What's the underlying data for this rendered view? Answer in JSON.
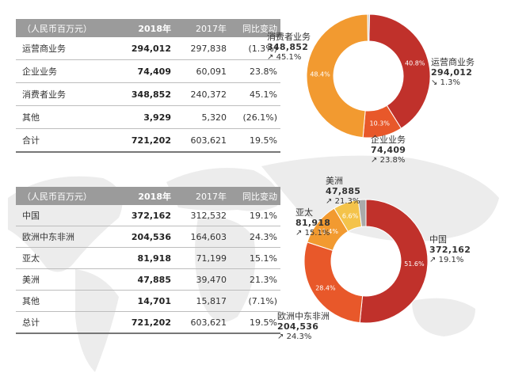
{
  "table_business": {
    "header": [
      "（人民币百万元）",
      "2018年",
      "2017年",
      "同比变动"
    ],
    "rows": [
      {
        "name": "运营商业务",
        "y2018": "294,012",
        "y2017": "297,838",
        "change": "(1.3%)"
      },
      {
        "name": "企业业务",
        "y2018": "74,409",
        "y2017": "60,091",
        "change": "23.8%"
      },
      {
        "name": "消费者业务",
        "y2018": "348,852",
        "y2017": "240,372",
        "change": "45.1%"
      },
      {
        "name": "其他",
        "y2018": "3,929",
        "y2017": "5,320",
        "change": "(26.1%)"
      },
      {
        "name": "合计",
        "y2018": "721,202",
        "y2017": "603,621",
        "change": "19.5%"
      }
    ]
  },
  "table_region": {
    "header": [
      "（人民币百万元）",
      "2018年",
      "2017年",
      "同比变动"
    ],
    "rows": [
      {
        "name": "中国",
        "y2018": "372,162",
        "y2017": "312,532",
        "change": "19.1%"
      },
      {
        "name": "欧洲中东非洲",
        "y2018": "204,536",
        "y2017": "164,603",
        "change": "24.3%"
      },
      {
        "name": "亚太",
        "y2018": "81,918",
        "y2017": "71,199",
        "change": "15.1%"
      },
      {
        "name": "美洲",
        "y2018": "47,885",
        "y2017": "39,470",
        "change": "21.3%"
      },
      {
        "name": "其他",
        "y2018": "14,701",
        "y2017": "15,817",
        "change": "(7.1%)"
      },
      {
        "name": "总计",
        "y2018": "721,202",
        "y2017": "603,621",
        "change": "19.5%"
      }
    ]
  },
  "chart_data": [
    {
      "type": "pie",
      "categories": [
        "运营商业务",
        "企业业务",
        "消费者业务",
        "其他"
      ],
      "values": [
        40.8,
        10.3,
        48.4,
        0.5
      ],
      "slice_labels": [
        "40.8%",
        "10.3%",
        "48.4%",
        ""
      ],
      "colors": [
        "#c0312b",
        "#e8582a",
        "#f29a30",
        "#cccccc"
      ],
      "annotations": [
        {
          "name": "运营商业务",
          "value": "294,012",
          "growth": "1.3%",
          "arrow": "↘"
        },
        {
          "name": "企业业务",
          "value": "74,409",
          "growth": "23.8%",
          "arrow": "↗"
        },
        {
          "name": "消费者业务",
          "value": "348,852",
          "growth": "45.1%",
          "arrow": "↗"
        }
      ]
    },
    {
      "type": "pie",
      "categories": [
        "中国",
        "欧洲中东非洲",
        "亚太",
        "美洲",
        "其他"
      ],
      "values": [
        51.6,
        28.4,
        11.4,
        6.6,
        2.0
      ],
      "slice_labels": [
        "51.6%",
        "28.4%",
        "11.4%",
        "6.6%",
        ""
      ],
      "colors": [
        "#c0312b",
        "#e8582a",
        "#f29a30",
        "#f4c34a",
        "#aaaaaa"
      ],
      "annotations": [
        {
          "name": "中国",
          "value": "372,162",
          "growth": "19.1%",
          "arrow": "↗"
        },
        {
          "name": "欧洲中东非洲",
          "value": "204,536",
          "growth": "24.3%",
          "arrow": "↗"
        },
        {
          "name": "亚太",
          "value": "81,918",
          "growth": "15.1%",
          "arrow": "↗"
        },
        {
          "name": "美洲",
          "value": "47,885",
          "growth": "21.3%",
          "arrow": "↗"
        }
      ]
    }
  ]
}
